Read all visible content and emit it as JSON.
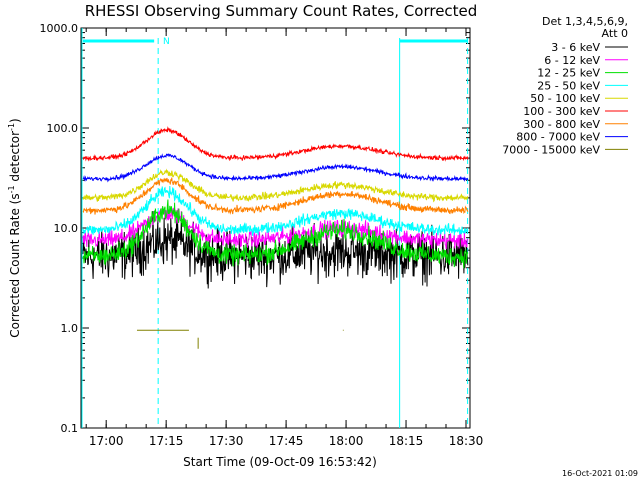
{
  "chart_data": {
    "type": "line",
    "title": "RHESSI Observing Summary Count Rates, Corrected",
    "xlabel": "Start Time (09-Oct-09 16:53:42)",
    "ylabel_main": "Corrected Count Rate (s",
    "ylabel_sup1": "-1",
    "ylabel_mid": " detector",
    "ylabel_sup2": "-1",
    "ylabel_end": ")",
    "y_scale": "log",
    "ylim": [
      0.1,
      1000
    ],
    "xlim_minutes": [
      0,
      97.3
    ],
    "x_ticks": [
      {
        "label": "17:00",
        "t": 6.3
      },
      {
        "label": "17:15",
        "t": 21.3
      },
      {
        "label": "17:30",
        "t": 36.3
      },
      {
        "label": "17:45",
        "t": 51.3
      },
      {
        "label": "18:00",
        "t": 66.3
      },
      {
        "label": "18:15",
        "t": 81.3
      },
      {
        "label": "18:30",
        "t": 96.3
      }
    ],
    "y_ticks": [
      {
        "label": "1000.0",
        "v": 1000
      },
      {
        "label": "100.0",
        "v": 100
      },
      {
        "label": "10.0",
        "v": 10
      },
      {
        "label": "1.0",
        "v": 1
      },
      {
        "label": "0.1",
        "v": 0.1
      }
    ],
    "legend_header": [
      "Det 1,3,4,5,6,9,",
      "Att 0"
    ],
    "legend_placement": "right",
    "series": [
      {
        "name": "3 - 6 keV",
        "color": "#000000",
        "base": 5.2,
        "peak1": 7.5,
        "peak2": 5.8,
        "noise": 0.35,
        "t_start": 0.5,
        "t_end": 96.8
      },
      {
        "name": "6 - 12 keV",
        "color": "#ff00ff",
        "base": 7.5,
        "peak1": 14,
        "peak2": 10,
        "noise": 0.12,
        "t_start": 0.5,
        "t_end": 96.8
      },
      {
        "name": "12 - 25 keV",
        "color": "#00e000",
        "base": 5.2,
        "peak1": 15,
        "peak2": 9.5,
        "noise": 0.14,
        "t_start": 0.5,
        "t_end": 96.8
      },
      {
        "name": "25 - 50 keV",
        "color": "#00ffff",
        "base": 9.5,
        "peak1": 23,
        "peak2": 14,
        "noise": 0.08,
        "t_start": 0.5,
        "t_end": 96.8
      },
      {
        "name": "50 - 100 keV",
        "color": "#d8d800",
        "base": 20,
        "peak1": 36,
        "peak2": 27,
        "noise": 0.05,
        "t_start": 0.5,
        "t_end": 96.8
      },
      {
        "name": "100 - 300 keV",
        "color": "#ff0000",
        "base": 50,
        "peak1": 95,
        "peak2": 66,
        "noise": 0.03,
        "t_start": 0.5,
        "t_end": 96.8
      },
      {
        "name": "300 - 800 keV",
        "color": "#ff8000",
        "base": 15,
        "peak1": 30,
        "peak2": 22,
        "noise": 0.05,
        "t_start": 0.5,
        "t_end": 96.8
      },
      {
        "name": "800 - 7000 keV",
        "color": "#0000ff",
        "base": 31,
        "peak1": 53,
        "peak2": 41,
        "noise": 0.03,
        "t_start": 0.5,
        "t_end": 96.8
      },
      {
        "name": "7000 - 15000 keV",
        "color": "#808000",
        "base": 0.95,
        "peak1": 0.95,
        "peak2": 0.95,
        "noise": 0.0,
        "t_start": 14,
        "t_end": 27
      }
    ],
    "vlines_minutes": [
      19.3,
      79.7,
      96.7
    ],
    "top_bars_minutes": [
      [
        0.5,
        18.3
      ],
      [
        79.7,
        96.7
      ]
    ],
    "top_bar_label": "N",
    "top_bar_label_t": 20.5
  },
  "footer": {
    "timestamp": "16-Oct-2021 01:09"
  }
}
